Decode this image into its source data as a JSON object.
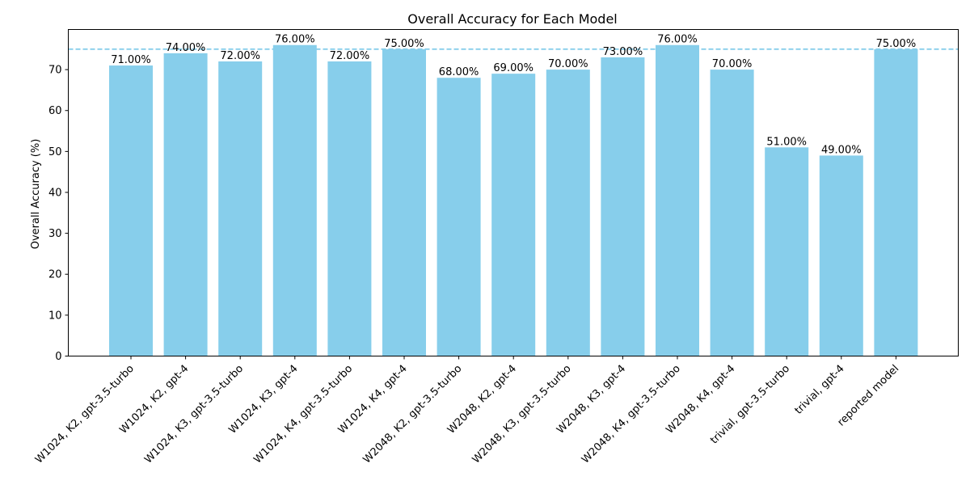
{
  "chart_data": {
    "type": "bar",
    "title": "Overall Accuracy for Each Model",
    "xlabel": "",
    "ylabel": "Overall Accuracy (%)",
    "ylim": [
      0,
      79.8
    ],
    "yticks": [
      0,
      10,
      20,
      30,
      40,
      50,
      60,
      70
    ],
    "grid": false,
    "legend": "none",
    "bar_color": "#87CEEB",
    "reference_line": {
      "value": 75,
      "style": "dashed",
      "color": "#87CEEB"
    },
    "categories": [
      "W1024, K2, gpt-3.5-turbo",
      "W1024, K2, gpt-4",
      "W1024, K3, gpt-3.5-turbo",
      "W1024, K3, gpt-4",
      "W1024, K4, gpt-3.5-turbo",
      "W1024, K4, gpt-4",
      "W2048, K2, gpt-3.5-turbo",
      "W2048, K2, gpt-4",
      "W2048, K3, gpt-3.5-turbo",
      "W2048, K3, gpt-4",
      "W2048, K4, gpt-3.5-turbo",
      "W2048, K4, gpt-4",
      "trivial, gpt-3.5-turbo",
      "trivial, gpt-4",
      "reported model"
    ],
    "values": [
      71,
      74,
      72,
      76,
      72,
      75,
      68,
      69,
      70,
      73,
      76,
      70,
      51,
      49,
      75
    ],
    "data_labels": [
      "71.00%",
      "74.00%",
      "72.00%",
      "76.00%",
      "72.00%",
      "75.00%",
      "68.00%",
      "69.00%",
      "70.00%",
      "73.00%",
      "76.00%",
      "70.00%",
      "51.00%",
      "49.00%",
      "75.00%"
    ]
  }
}
